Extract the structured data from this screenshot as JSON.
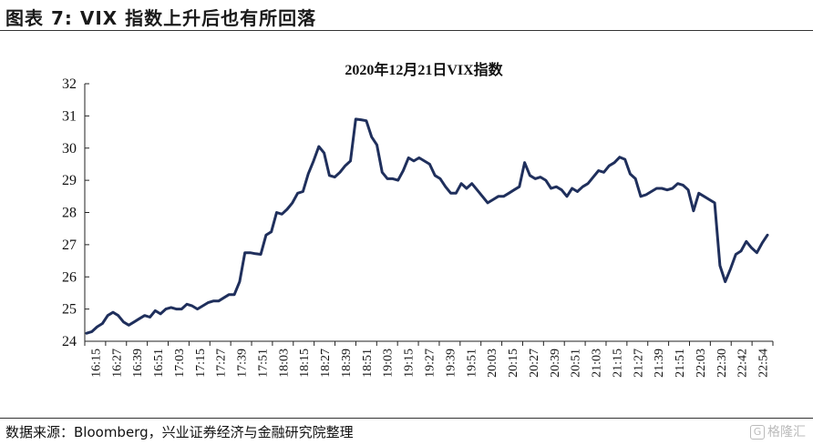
{
  "figure": {
    "title": "图表 7:  VIX 指数上升后也有所回落",
    "source": "数据来源：Bloomberg，兴业证券经济与金融研究院整理",
    "watermark": "格隆汇"
  },
  "chart_data": {
    "type": "line",
    "title": "2020年12月21日VIX指数",
    "xlabel": "",
    "ylabel": "",
    "ylim": [
      24,
      32
    ],
    "yticks": [
      24,
      25,
      26,
      27,
      28,
      29,
      30,
      31,
      32
    ],
    "xtick_labels": [
      "16:15",
      "16:27",
      "16:39",
      "16:51",
      "17:03",
      "17:15",
      "17:27",
      "17:39",
      "17:51",
      "18:03",
      "18:15",
      "18:27",
      "18:39",
      "18:51",
      "19:03",
      "19:15",
      "19:27",
      "19:39",
      "19:51",
      "20:03",
      "20:15",
      "20:27",
      "20:39",
      "20:51",
      "21:03",
      "21:15",
      "21:27",
      "21:39",
      "21:51",
      "22:03",
      "22:30",
      "22:42",
      "22:54"
    ],
    "grid": false,
    "legend": "none",
    "line_color": "#1f2f5c",
    "series": [
      {
        "values": [
          24.25,
          24.3,
          24.45,
          24.55,
          24.8,
          24.9,
          24.8,
          24.6,
          24.5,
          24.6,
          24.7,
          24.8,
          24.75,
          24.95,
          24.85,
          25.0,
          25.05,
          25.0,
          25.0,
          25.15,
          25.1,
          25.0,
          25.1,
          25.2,
          25.25,
          25.25,
          25.35,
          25.45,
          25.45,
          25.85,
          26.75,
          26.75,
          26.72,
          26.7,
          27.3,
          27.4,
          28.0,
          27.95,
          28.1,
          28.3,
          28.6,
          28.65,
          29.2,
          29.6,
          30.05,
          29.85,
          29.15,
          29.1,
          29.25,
          29.45,
          29.6,
          30.9,
          30.88,
          30.85,
          30.35,
          30.1,
          29.25,
          29.05,
          29.05,
          29.0,
          29.3,
          29.7,
          29.6,
          29.7,
          29.6,
          29.5,
          29.15,
          29.05,
          28.8,
          28.6,
          28.6,
          28.9,
          28.75,
          28.9,
          28.7,
          28.5,
          28.3,
          28.4,
          28.5,
          28.5,
          28.6,
          28.7,
          28.8,
          29.55,
          29.15,
          29.05,
          29.1,
          29.0,
          28.75,
          28.8,
          28.7,
          28.5,
          28.75,
          28.65,
          28.8,
          28.9,
          29.1,
          29.3,
          29.25,
          29.45,
          29.55,
          29.72,
          29.65,
          29.2,
          29.05,
          28.5,
          28.55,
          28.65,
          28.75,
          28.75,
          28.7,
          28.75,
          28.9,
          28.85,
          28.7,
          28.05,
          28.6,
          28.5,
          28.4,
          28.3,
          26.35,
          25.85,
          26.25,
          26.7,
          26.8,
          27.1,
          26.9,
          26.75,
          27.05,
          27.3
        ]
      }
    ]
  }
}
